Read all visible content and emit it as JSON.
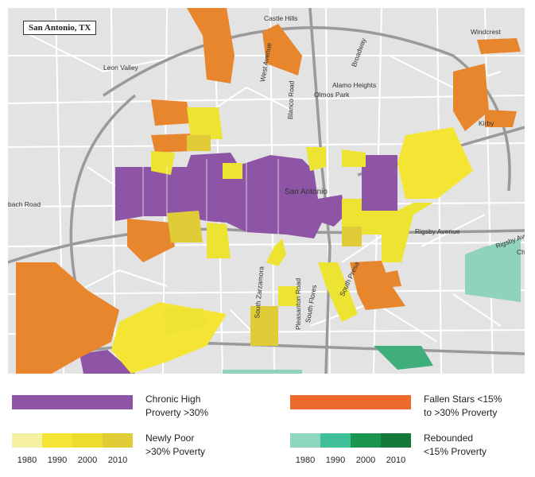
{
  "map": {
    "title": "San Antonio, TX",
    "place_labels": {
      "castle_hills": "Castle Hills",
      "windcrest": "Windcrest",
      "leon_valley": "Leon Valley",
      "alamo_heights": "Alamo Heights",
      "olmos_park": "Olmos Park",
      "kirby": "Kirby",
      "san_antonio": "San Antonio",
      "beach_road": "bach Road",
      "rigsby": "Rigsby Avenue",
      "west_ave": "West Avenue",
      "blanco": "Blanco Road",
      "broadway": "Broadway",
      "zarzamora": "South Zarzamora",
      "south_flores": "South Flores",
      "pleasanton": "Pleasanton Road",
      "south_presa": "South Presa",
      "rigsby_chi": "Chi",
      "rigsby_right": "Rigsby Ave"
    },
    "colors": {
      "background": "#e3e3e3",
      "chronic": "#8e55a6",
      "fallen": "#e8862e",
      "newly_poor": "#ece332",
      "rebounded": "#8fd3bd",
      "rebounded_dark": "#3fae7a"
    }
  },
  "legend": {
    "chronic": {
      "label_line1": "Chronic High",
      "label_line2": "Proverty >30%",
      "color": "#8e55a6"
    },
    "fallen": {
      "label_line1": "Fallen Stars <15%",
      "label_line2": "to >30% Proverty",
      "color": "#ec6a2c"
    },
    "newly_poor": {
      "label_line1": "Newly Poor",
      "label_line2": ">30% Poverty",
      "colors": [
        "#f6f0a4",
        "#f4e534",
        "#ecdd2e",
        "#dfcc36"
      ],
      "years": [
        "1980",
        "1990",
        "2000",
        "2010"
      ]
    },
    "rebounded": {
      "label_line1": "Rebounded",
      "label_line2": "<15% Proverty",
      "colors": [
        "#8fd6bf",
        "#3fbf9a",
        "#1a9650",
        "#137a3a"
      ],
      "years": [
        "1980",
        "1990",
        "2000",
        "2010"
      ]
    }
  }
}
